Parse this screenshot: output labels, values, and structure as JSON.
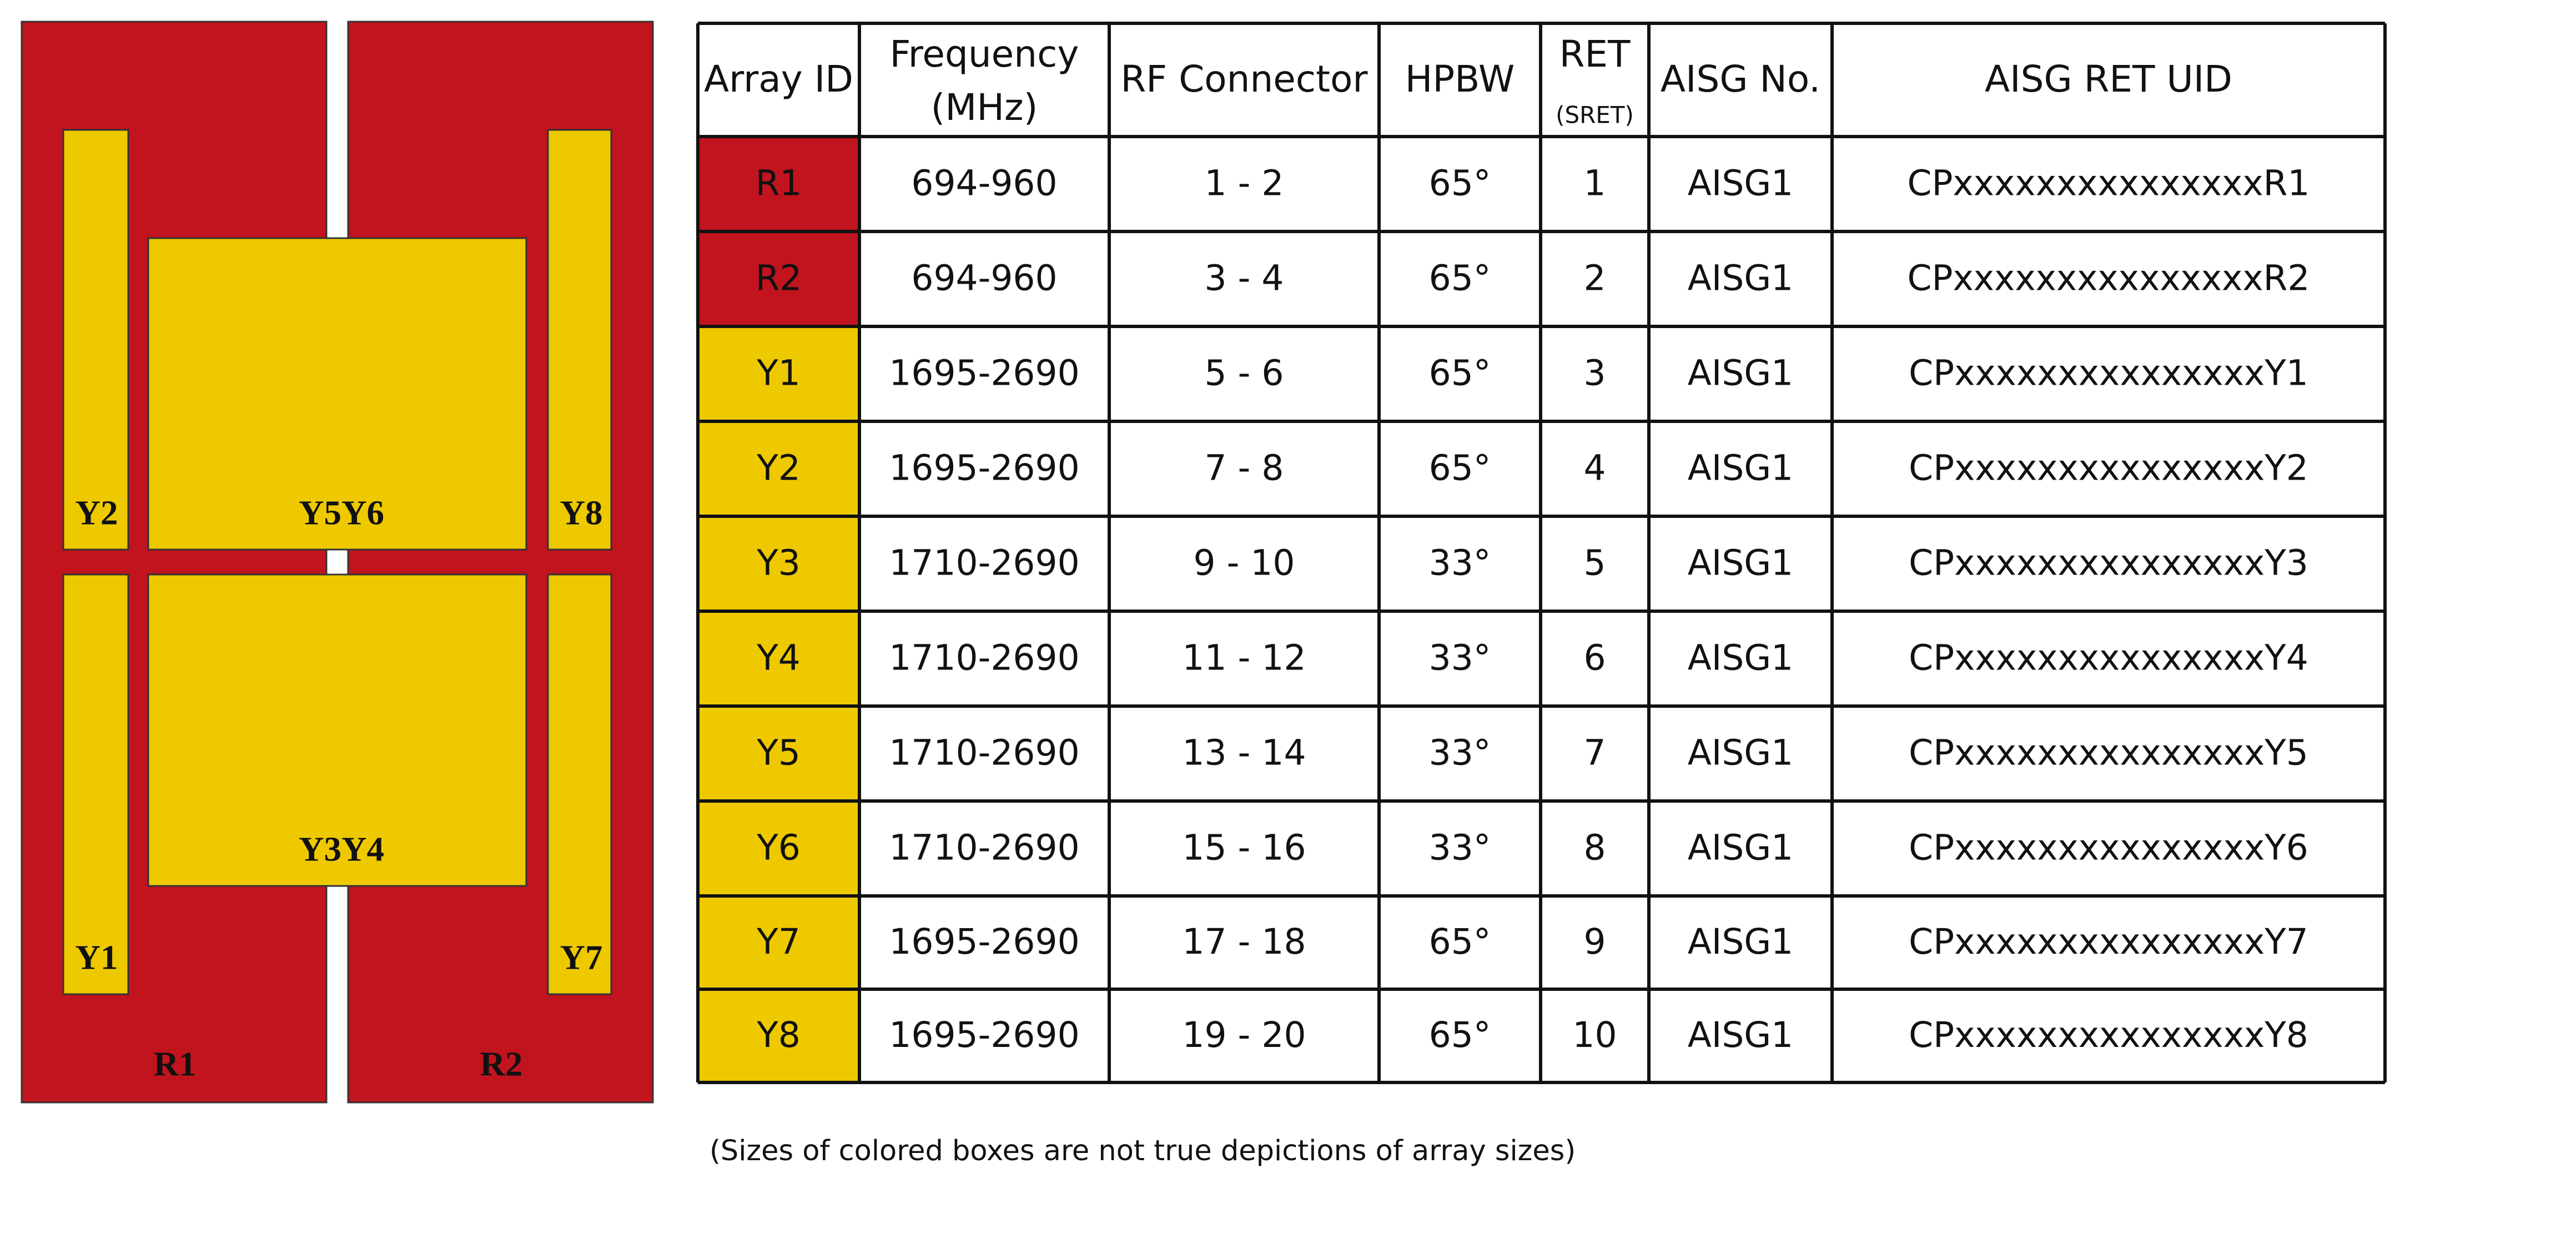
{
  "diagram": {
    "blocks": [
      "R1",
      "R2",
      "Y2",
      "Y5Y6",
      "Y8",
      "Y1",
      "Y3Y4",
      "Y7"
    ]
  },
  "table": {
    "header": [
      "Array ID",
      "Frequency",
      "(MHz)",
      "RF Connector",
      "HPBW",
      "RET",
      "(SRET)",
      "AISG No.",
      "AISG RET UID"
    ],
    "row_colors": [
      "#c1141e",
      "#c1141e",
      "#eec900",
      "#eec900",
      "#eec900",
      "#eec900",
      "#eec900",
      "#eec900",
      "#eec900",
      "#eec900"
    ],
    "rows": [
      [
        "R1",
        "694-960",
        "1 - 2",
        "65°",
        "1",
        "AISG1",
        "CPxxxxxxxxxxxxxxxR1"
      ],
      [
        "R2",
        "694-960",
        "3 - 4",
        "65°",
        "2",
        "AISG1",
        "CPxxxxxxxxxxxxxxxR2"
      ],
      [
        "Y1",
        "1695-2690",
        "5 - 6",
        "65°",
        "3",
        "AISG1",
        "CPxxxxxxxxxxxxxxxY1"
      ],
      [
        "Y2",
        "1695-2690",
        "7 - 8",
        "65°",
        "4",
        "AISG1",
        "CPxxxxxxxxxxxxxxxY2"
      ],
      [
        "Y3",
        "1710-2690",
        "9 - 10",
        "33°",
        "5",
        "AISG1",
        "CPxxxxxxxxxxxxxxxY3"
      ],
      [
        "Y4",
        "1710-2690",
        "11 - 12",
        "33°",
        "6",
        "AISG1",
        "CPxxxxxxxxxxxxxxxY4"
      ],
      [
        "Y5",
        "1710-2690",
        "13 - 14",
        "33°",
        "7",
        "AISG1",
        "CPxxxxxxxxxxxxxxxY5"
      ],
      [
        "Y6",
        "1710-2690",
        "15 - 16",
        "33°",
        "8",
        "AISG1",
        "CPxxxxxxxxxxxxxxxY6"
      ],
      [
        "Y7",
        "1695-2690",
        "17 - 18",
        "65°",
        "9",
        "AISG1",
        "CPxxxxxxxxxxxxxxxY7"
      ],
      [
        "Y8",
        "1695-2690",
        "19 - 20",
        "65°",
        "10",
        "AISG1",
        "CPxxxxxxxxxxxxxxxY8"
      ]
    ]
  },
  "note": "(Sizes of colored boxes are not true depictions of array sizes)"
}
